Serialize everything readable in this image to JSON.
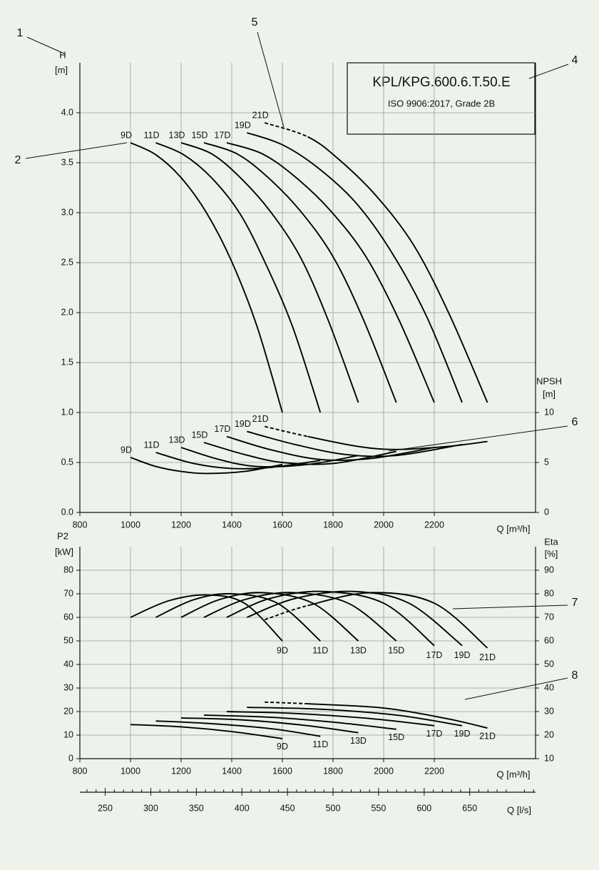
{
  "callouts": [
    "1",
    "2",
    "4",
    "5",
    "6",
    "7",
    "8"
  ],
  "chart_data": [
    {
      "type": "line",
      "title": "KPL/KPG.600.6.T.50.E",
      "subtitle": "ISO 9906:2017, Grade 2B",
      "x_label": "Q [m³/h]",
      "y_label": "H",
      "y_unit": "[m]",
      "y2_label": "NPSH",
      "y2_unit": "[m]",
      "xlim": [
        800,
        2600
      ],
      "xticks": [
        800,
        1000,
        1200,
        1400,
        1600,
        1800,
        2000,
        2200
      ],
      "ylim": [
        0,
        4.5
      ],
      "yticks": [
        {
          "value": 0,
          "label": "0.0"
        },
        0.5,
        {
          "value": 1,
          "label": "1.0"
        },
        1.5,
        {
          "value": 2,
          "label": "2.0"
        },
        2.5,
        {
          "value": 3,
          "label": "3.0"
        },
        3.5,
        {
          "value": 4,
          "label": "4.0"
        }
      ],
      "y2lim": [
        0,
        45
      ],
      "y2ticks": [
        0,
        5,
        10
      ],
      "grid": true,
      "series": [
        {
          "name": "9D",
          "color": "#000000",
          "x": [
            1000,
            1100,
            1200,
            1300,
            1400,
            1500,
            1600
          ],
          "values": [
            3.7,
            3.58,
            3.35,
            3.0,
            2.51,
            1.86,
            1.0
          ]
        },
        {
          "name": "11D",
          "color": "#000000",
          "x": [
            1100,
            1210,
            1320,
            1430,
            1530,
            1640,
            1750
          ],
          "values": [
            3.7,
            3.58,
            3.35,
            3.0,
            2.51,
            1.86,
            1.0
          ]
        },
        {
          "name": "13D",
          "color": "#000000",
          "x": [
            1200,
            1320,
            1430,
            1550,
            1670,
            1780,
            1900
          ],
          "values": [
            3.7,
            3.59,
            3.36,
            3.02,
            2.56,
            1.93,
            1.1
          ]
        },
        {
          "name": "15D",
          "color": "#000000",
          "x": [
            1290,
            1420,
            1540,
            1670,
            1800,
            1920,
            2050
          ],
          "values": [
            3.7,
            3.59,
            3.36,
            3.02,
            2.56,
            1.93,
            1.1
          ]
        },
        {
          "name": "17D",
          "color": "#000000",
          "x": [
            1380,
            1520,
            1650,
            1790,
            1930,
            2060,
            2200
          ],
          "values": [
            3.7,
            3.59,
            3.36,
            3.02,
            2.56,
            1.93,
            1.1
          ]
        },
        {
          "name": "19D",
          "color": "#000000",
          "x": [
            1460,
            1600,
            1740,
            1890,
            2030,
            2170,
            2310
          ],
          "values": [
            3.8,
            3.68,
            3.45,
            3.1,
            2.61,
            1.96,
            1.1
          ]
        },
        {
          "name": "21D",
          "color": "#000000",
          "dashed_to": 1700,
          "x": [
            1530,
            1700,
            1820,
            1970,
            2120,
            2260,
            2410
          ],
          "values": [
            3.9,
            3.76,
            3.54,
            3.17,
            2.67,
            1.98,
            1.1
          ]
        },
        {
          "name": "9D",
          "color": "#000000",
          "axis": "y2",
          "x": [
            1000,
            1100,
            1200,
            1300,
            1450,
            1600
          ],
          "values": [
            5.5,
            4.6,
            4.1,
            3.9,
            4.1,
            4.8
          ]
        },
        {
          "name": "11D",
          "color": "#000000",
          "axis": "y2",
          "x": [
            1100,
            1250,
            1400,
            1550,
            1750
          ],
          "values": [
            6.0,
            4.9,
            4.4,
            4.5,
            5.2
          ]
        },
        {
          "name": "13D",
          "color": "#000000",
          "axis": "y2",
          "x": [
            1200,
            1350,
            1500,
            1700,
            1900
          ],
          "values": [
            6.5,
            5.3,
            4.6,
            4.8,
            5.7
          ]
        },
        {
          "name": "15D",
          "color": "#000000",
          "axis": "y2",
          "x": [
            1290,
            1450,
            1600,
            1800,
            2050
          ],
          "values": [
            7.0,
            5.8,
            5.0,
            4.9,
            6.1
          ]
        },
        {
          "name": "17D",
          "color": "#000000",
          "axis": "y2",
          "x": [
            1380,
            1550,
            1750,
            1950,
            2200
          ],
          "values": [
            7.6,
            6.3,
            5.3,
            5.4,
            6.5
          ]
        },
        {
          "name": "19D",
          "color": "#000000",
          "axis": "y2",
          "x": [
            1460,
            1650,
            1850,
            2050,
            2310
          ],
          "values": [
            8.1,
            6.8,
            5.8,
            5.7,
            6.8
          ]
        },
        {
          "name": "21D",
          "color": "#000000",
          "axis": "y2",
          "dashed_to": 1700,
          "x": [
            1530,
            1700,
            1900,
            2050,
            2250,
            2410
          ],
          "values": [
            8.6,
            7.6,
            6.6,
            6.3,
            6.6,
            7.1
          ]
        }
      ]
    },
    {
      "type": "line",
      "x_label": "Q [m³/h]",
      "y_label": "P2",
      "y_unit": "[kW]",
      "y2_label": "Eta",
      "y2_unit": "[%]",
      "x2_label": "Q [l/s]",
      "xlim": [
        800,
        2600
      ],
      "xticks": [
        800,
        1000,
        1200,
        1400,
        1600,
        1800,
        2000,
        2200
      ],
      "ylim": [
        0,
        90
      ],
      "yticks": [
        0,
        10,
        20,
        30,
        40,
        50,
        60,
        70,
        80
      ],
      "y2lim": [
        10,
        100
      ],
      "y2ticks": [
        10,
        20,
        30,
        40,
        50,
        60,
        70,
        80,
        90
      ],
      "x2lim": [
        222.2,
        722.2
      ],
      "x2ticks": [
        250,
        300,
        350,
        400,
        450,
        500,
        550,
        600,
        650
      ],
      "x2minorticks": [
        230,
        240,
        260,
        270,
        280,
        290,
        310,
        320,
        330,
        340,
        360,
        370,
        380,
        390,
        410,
        420,
        430,
        440,
        460,
        470,
        480,
        490,
        510,
        520,
        530,
        540,
        560,
        570,
        580,
        590,
        610,
        620,
        630,
        640,
        660,
        670,
        680,
        690,
        710,
        720
      ],
      "grid": true,
      "series": [
        {
          "name": "9D",
          "color": "#000000",
          "axis": "y2",
          "x": [
            1000,
            1150,
            1300,
            1450,
            1600
          ],
          "values": [
            70,
            77,
            79.5,
            76,
            60
          ]
        },
        {
          "name": "11D",
          "color": "#000000",
          "axis": "y2",
          "x": [
            1100,
            1250,
            1400,
            1580,
            1750
          ],
          "values": [
            70,
            77.5,
            80,
            76,
            60
          ]
        },
        {
          "name": "13D",
          "color": "#000000",
          "axis": "y2",
          "x": [
            1200,
            1350,
            1520,
            1720,
            1900
          ],
          "values": [
            70,
            77.5,
            80.5,
            76,
            60
          ]
        },
        {
          "name": "15D",
          "color": "#000000",
          "axis": "y2",
          "x": [
            1290,
            1450,
            1640,
            1860,
            2050
          ],
          "values": [
            70,
            77.5,
            80.5,
            76,
            60
          ]
        },
        {
          "name": "17D",
          "color": "#000000",
          "axis": "y2",
          "x": [
            1380,
            1550,
            1760,
            2000,
            2200
          ],
          "values": [
            70,
            78,
            81,
            76,
            58
          ]
        },
        {
          "name": "19D",
          "color": "#000000",
          "axis": "y2",
          "x": [
            1460,
            1650,
            1880,
            2100,
            2310
          ],
          "values": [
            70,
            78,
            81,
            76,
            58
          ]
        },
        {
          "name": "21D",
          "color": "#000000",
          "axis": "y2",
          "dashed_to": 1700,
          "x": [
            1530,
            1700,
            1950,
            2200,
            2410
          ],
          "values": [
            69,
            75,
            80.5,
            76,
            57
          ]
        },
        {
          "name": "9D",
          "color": "#000000",
          "x": [
            1000,
            1200,
            1400,
            1600
          ],
          "values": [
            14.5,
            13.5,
            11.5,
            8.5
          ]
        },
        {
          "name": "11D",
          "color": "#000000",
          "x": [
            1100,
            1300,
            1550,
            1750
          ],
          "values": [
            16,
            15,
            12.8,
            9.5
          ]
        },
        {
          "name": "13D",
          "color": "#000000",
          "x": [
            1200,
            1450,
            1700,
            1900
          ],
          "values": [
            17.3,
            16.4,
            14,
            11
          ]
        },
        {
          "name": "15D",
          "color": "#000000",
          "x": [
            1290,
            1550,
            1800,
            2050
          ],
          "values": [
            18.5,
            17.6,
            15.5,
            12.5
          ]
        },
        {
          "name": "17D",
          "color": "#000000",
          "x": [
            1380,
            1650,
            1950,
            2200
          ],
          "values": [
            20,
            19.2,
            17,
            14
          ]
        },
        {
          "name": "19D",
          "color": "#000000",
          "x": [
            1460,
            1750,
            2050,
            2310
          ],
          "values": [
            21.8,
            21,
            18.5,
            14
          ]
        },
        {
          "name": "21D",
          "color": "#000000",
          "dashed_to": 1700,
          "x": [
            1530,
            1700,
            2000,
            2250,
            2410
          ],
          "values": [
            24,
            23.3,
            21.5,
            17,
            13
          ]
        }
      ]
    }
  ]
}
